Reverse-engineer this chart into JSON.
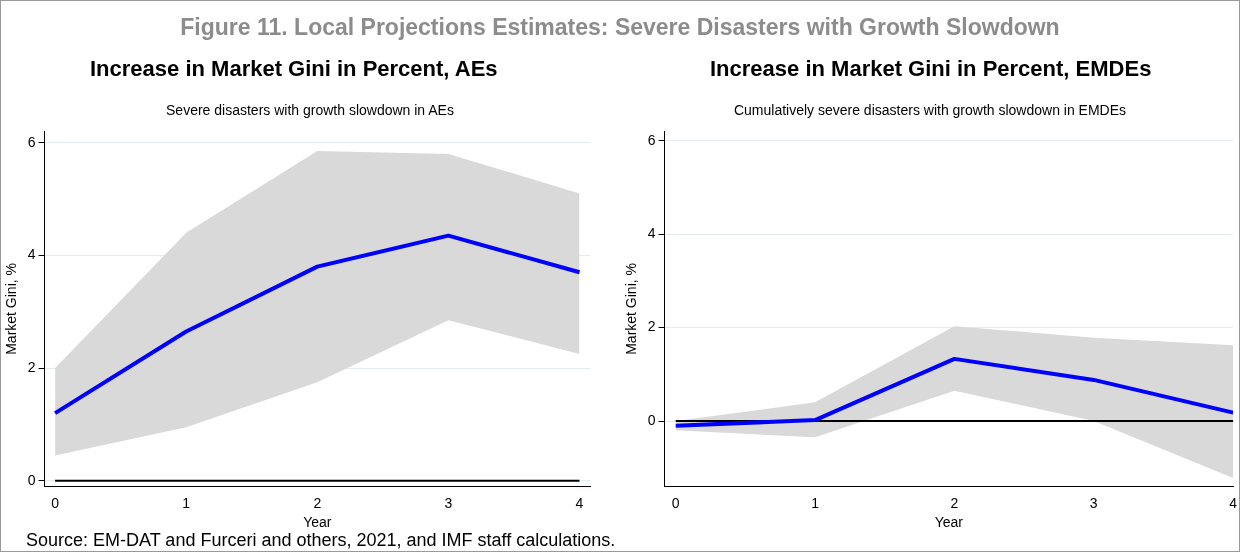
{
  "chart_data": [
    {
      "type": "line",
      "title": "Increase in Market Gini in Percent, AEs",
      "subtitle": "Severe disasters with growth slowdown in AEs",
      "xlabel": "Year",
      "ylabel": "Market Gini, %",
      "annotations": [
        "Figure 11. Local Projections Estimates: Severe Disasters with Growth Slowdown"
      ],
      "x": [
        0,
        1,
        2,
        3,
        4
      ],
      "xlim": [
        -0.08,
        4.08
      ],
      "xticks": [
        0,
        1,
        2,
        3,
        4
      ],
      "ylim": [
        -0.1,
        6.2
      ],
      "yticks": [
        0,
        2,
        4,
        6
      ],
      "series": [
        {
          "color": "#0000ff",
          "values": [
            1.2,
            2.65,
            3.8,
            4.35,
            3.7
          ],
          "lower": [
            0.45,
            0.95,
            1.75,
            2.85,
            2.25
          ],
          "upper": [
            2.0,
            4.4,
            5.85,
            5.8,
            5.1
          ]
        }
      ],
      "ref_lines": [
        {
          "axis": "y",
          "value": 0,
          "color": "#000000"
        }
      ],
      "grid": "y",
      "legend": false,
      "marker": "none",
      "line_style": "solid"
    },
    {
      "type": "line",
      "title": "Increase in Market Gini in Percent, EMDEs",
      "subtitle": "Cumulatively severe disasters with growth slowdown in EMDEs",
      "xlabel": "Year",
      "ylabel": "Market Gini, %",
      "annotations": [
        "Source: EM-DAT and Furceri and others, 2021, and IMF staff calculations."
      ],
      "x": [
        0,
        1,
        2,
        3,
        4
      ],
      "xlim": [
        -0.08,
        4.0
      ],
      "xticks": [
        0,
        1,
        2,
        3,
        4
      ],
      "ylim": [
        -1.4,
        6.2
      ],
      "yticks": [
        0,
        2,
        4,
        6
      ],
      "series": [
        {
          "color": "#0000ff",
          "values": [
            -0.1,
            0.02,
            1.33,
            0.88,
            0.18
          ],
          "lower": [
            -0.2,
            -0.35,
            0.65,
            0.0,
            -1.22
          ],
          "upper": [
            0.0,
            0.4,
            2.03,
            1.78,
            1.62
          ]
        }
      ],
      "ref_lines": [
        {
          "axis": "y",
          "value": 0,
          "color": "#000000"
        }
      ],
      "grid": "y",
      "legend": false,
      "marker": "none",
      "line_style": "solid"
    }
  ]
}
